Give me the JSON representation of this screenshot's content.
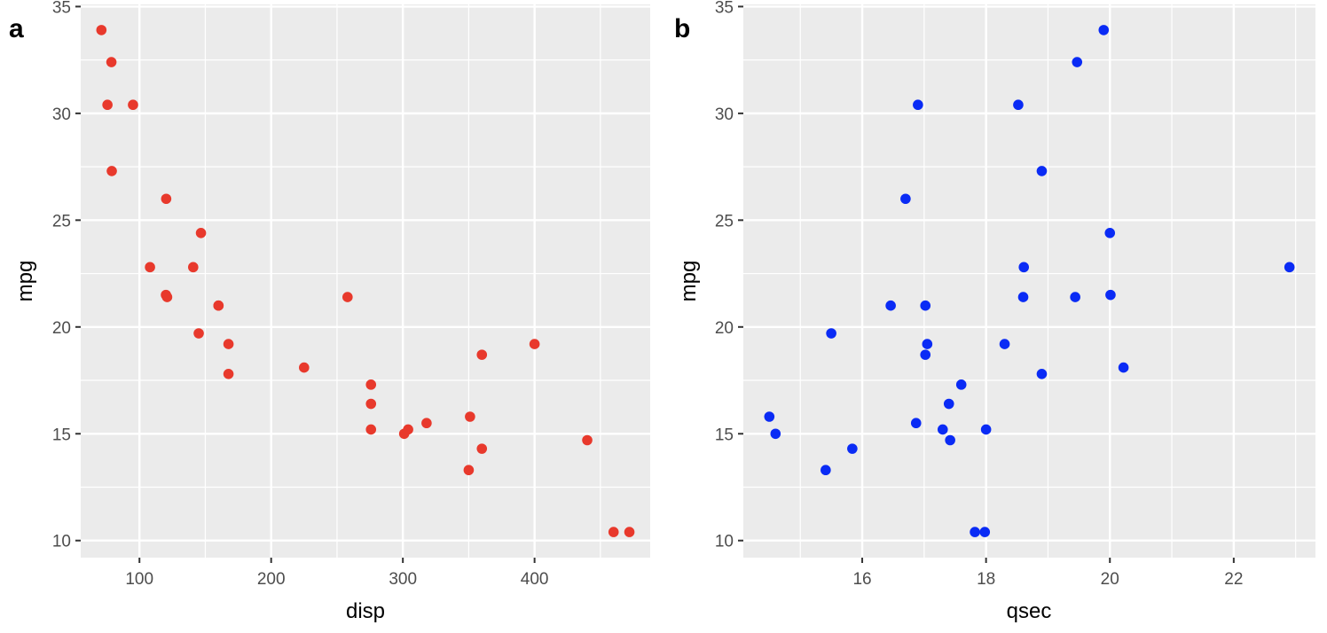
{
  "chart_data": [
    {
      "type": "scatter",
      "tag": "a",
      "xlabel": "disp",
      "ylabel": "mpg",
      "xlim": [
        55.4,
        487.8
      ],
      "ylim": [
        9.2,
        35.1
      ],
      "x_ticks": [
        100,
        200,
        300,
        400
      ],
      "y_ticks": [
        10,
        15,
        20,
        25,
        30,
        35
      ],
      "grid": true,
      "point_color": "#E8392C",
      "x": [
        160,
        160,
        108,
        258,
        360,
        225,
        360,
        146.7,
        140.8,
        167.6,
        167.6,
        275.8,
        275.8,
        275.8,
        472,
        460,
        440,
        78.7,
        75.7,
        71.1,
        120.1,
        318,
        304,
        350,
        400,
        79,
        120.3,
        95.1,
        351,
        145,
        301,
        121
      ],
      "y": [
        21,
        21,
        22.8,
        21.4,
        18.7,
        18.1,
        14.3,
        24.4,
        22.8,
        19.2,
        17.8,
        16.4,
        17.3,
        15.2,
        10.4,
        10.4,
        14.7,
        32.4,
        30.4,
        33.9,
        21.5,
        15.5,
        15.2,
        13.3,
        19.2,
        27.3,
        26,
        30.4,
        15.8,
        19.7,
        15,
        21.4
      ]
    },
    {
      "type": "scatter",
      "tag": "b",
      "xlabel": "qsec",
      "ylabel": "mpg",
      "xlim": [
        14.08,
        23.32
      ],
      "ylim": [
        9.2,
        35.1
      ],
      "x_ticks": [
        16,
        18,
        20,
        22
      ],
      "y_ticks": [
        10,
        15,
        20,
        25,
        30,
        35
      ],
      "grid": true,
      "point_color": "#0A2BF5",
      "x": [
        16.46,
        17.02,
        18.61,
        19.44,
        17.02,
        20.22,
        15.84,
        20,
        22.9,
        18.3,
        18.9,
        17.4,
        17.6,
        18,
        17.98,
        17.82,
        17.42,
        19.47,
        18.52,
        19.9,
        20.01,
        16.87,
        17.3,
        15.41,
        17.05,
        18.9,
        16.7,
        16.9,
        14.5,
        15.5,
        14.6,
        18.6
      ],
      "y": [
        21,
        21,
        22.8,
        21.4,
        18.7,
        18.1,
        14.3,
        24.4,
        22.8,
        19.2,
        17.8,
        16.4,
        17.3,
        15.2,
        10.4,
        10.4,
        14.7,
        32.4,
        30.4,
        33.9,
        21.5,
        15.5,
        15.2,
        13.3,
        19.2,
        27.3,
        26,
        30.4,
        15.8,
        19.7,
        15,
        21.4
      ]
    }
  ]
}
